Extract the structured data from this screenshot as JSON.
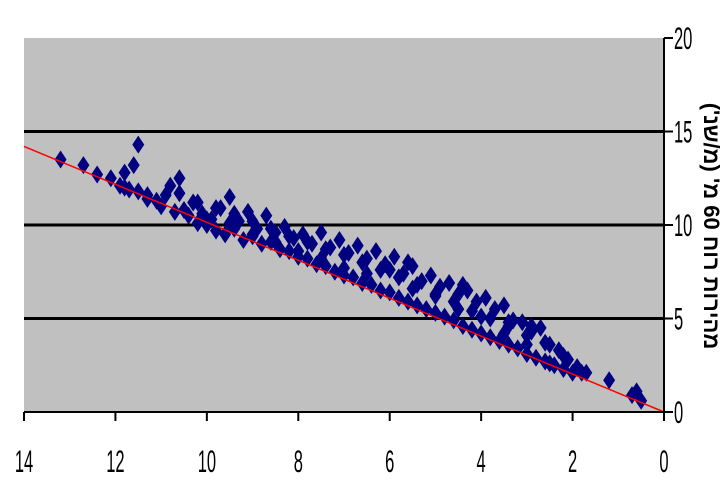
{
  "chart_data": {
    "type": "scatter",
    "title": "",
    "xlabel": "",
    "ylabel": "מהירות רוח 60 מ' (מ/שנ')",
    "x_axis": {
      "min": 0,
      "max": 14,
      "reversed": true,
      "ticks": [
        14,
        12,
        10,
        8,
        6,
        4,
        2,
        0
      ]
    },
    "y_axis": {
      "min": 0,
      "max": 20,
      "position": "right",
      "ticks": [
        0,
        5,
        10,
        15,
        20
      ]
    },
    "gridlines": "horizontal",
    "legend": "none",
    "colors": {
      "plot_background": "#c0c0c0",
      "marker": "#000080",
      "trendline": "#ff0000",
      "gridline": "#000000"
    },
    "marker": "diamond",
    "trendline": {
      "x": [
        0,
        14
      ],
      "y": [
        0,
        14.2
      ]
    },
    "series": [
      {
        "x": [
          13.2,
          12.7,
          12.4,
          12.1,
          11.9,
          11.7,
          11.5,
          11.8,
          11.6,
          11.3,
          11.1,
          10.8,
          10.6,
          10.5,
          10.3,
          10.1,
          9.9,
          9.7,
          9.5,
          9.3,
          9.1,
          8.9,
          8.7,
          8.5,
          8.3,
          8.1,
          7.9,
          7.7,
          7.5,
          7.3,
          7.1,
          6.9,
          6.7,
          6.5,
          6.3,
          6.1,
          5.9,
          5.7,
          5.5,
          5.3,
          5.1,
          4.9,
          4.7,
          4.5,
          4.3,
          4.1,
          3.9,
          3.7,
          3.5,
          3.3,
          3.1,
          2.9,
          2.7,
          2.5,
          2.3,
          2.1,
          1.9,
          1.7,
          1.2,
          0.6,
          0.5,
          11.8,
          11.5,
          11.3,
          11.0,
          10.9,
          10.7,
          10.4,
          10.2,
          10.0,
          9.8,
          9.6,
          9.4,
          9.2,
          9.0,
          8.8,
          8.6,
          8.4,
          8.2,
          8.0,
          7.8,
          7.6,
          7.4,
          7.2,
          7.0,
          6.8,
          6.6,
          6.4,
          6.2,
          6.0,
          5.8,
          5.6,
          5.4,
          5.2,
          5.0,
          4.8,
          4.6,
          4.4,
          4.2,
          4.0,
          3.8,
          3.6,
          3.4,
          3.2,
          3.0,
          2.8,
          2.6,
          2.4,
          2.2,
          2.0,
          10.6,
          10.2,
          9.8,
          9.4,
          9.0,
          8.6,
          8.2,
          7.8,
          7.4,
          7.0,
          6.6,
          6.2,
          5.8,
          5.4,
          5.0,
          4.6,
          4.2,
          3.8,
          3.4,
          3.0,
          2.6,
          2.2,
          10.0,
          9.5,
          9.0,
          8.5,
          8.0,
          7.5,
          7.0,
          6.5,
          6.0,
          5.5,
          5.0,
          4.5,
          4.0,
          3.5,
          3.0,
          5.6,
          4.4,
          3.4,
          2.9,
          2.5,
          1.8,
          0.7
        ],
        "y": [
          13.5,
          13.2,
          12.7,
          12.5,
          12.1,
          11.9,
          14.3,
          12.8,
          13.2,
          11.6,
          11.3,
          12.1,
          11.7,
          10.8,
          11.2,
          10.6,
          10.3,
          10.9,
          11.5,
          10.2,
          10.7,
          9.8,
          10.5,
          9.6,
          9.9,
          9.3,
          9.5,
          9.0,
          9.6,
          8.8,
          9.2,
          8.5,
          8.9,
          8.2,
          8.6,
          7.9,
          8.3,
          7.4,
          7.8,
          7.0,
          7.3,
          6.7,
          6.9,
          6.3,
          6.5,
          5.9,
          6.1,
          5.5,
          5.7,
          4.9,
          4.8,
          4.3,
          4.5,
          3.6,
          3.3,
          2.8,
          2.4,
          2.1,
          1.7,
          1.1,
          0.6,
          12.0,
          11.8,
          11.4,
          11.0,
          11.6,
          10.7,
          10.5,
          10.1,
          10.0,
          9.7,
          9.5,
          9.8,
          9.2,
          9.4,
          9.0,
          9.1,
          8.7,
          8.6,
          8.3,
          8.2,
          7.9,
          7.8,
          7.5,
          7.3,
          7.2,
          6.9,
          6.8,
          6.5,
          6.4,
          6.1,
          5.9,
          5.7,
          5.5,
          5.3,
          5.1,
          4.9,
          4.6,
          4.4,
          4.2,
          4.0,
          3.8,
          3.6,
          3.4,
          3.1,
          2.9,
          2.7,
          2.5,
          2.3,
          2.1,
          12.5,
          11.2,
          10.9,
          10.6,
          10.2,
          9.8,
          9.4,
          9.1,
          8.7,
          8.4,
          8.0,
          7.6,
          7.2,
          6.8,
          6.3,
          5.9,
          5.4,
          5.0,
          4.6,
          4.1,
          3.7,
          3.0,
          10.3,
          10.1,
          9.5,
          9.1,
          8.6,
          8.2,
          7.7,
          7.4,
          7.6,
          6.6,
          6.2,
          5.5,
          5.1,
          4.2,
          3.6,
          8.0,
          6.8,
          4.8,
          4.6,
          2.6,
          2.1,
          0.9
        ]
      }
    ]
  }
}
